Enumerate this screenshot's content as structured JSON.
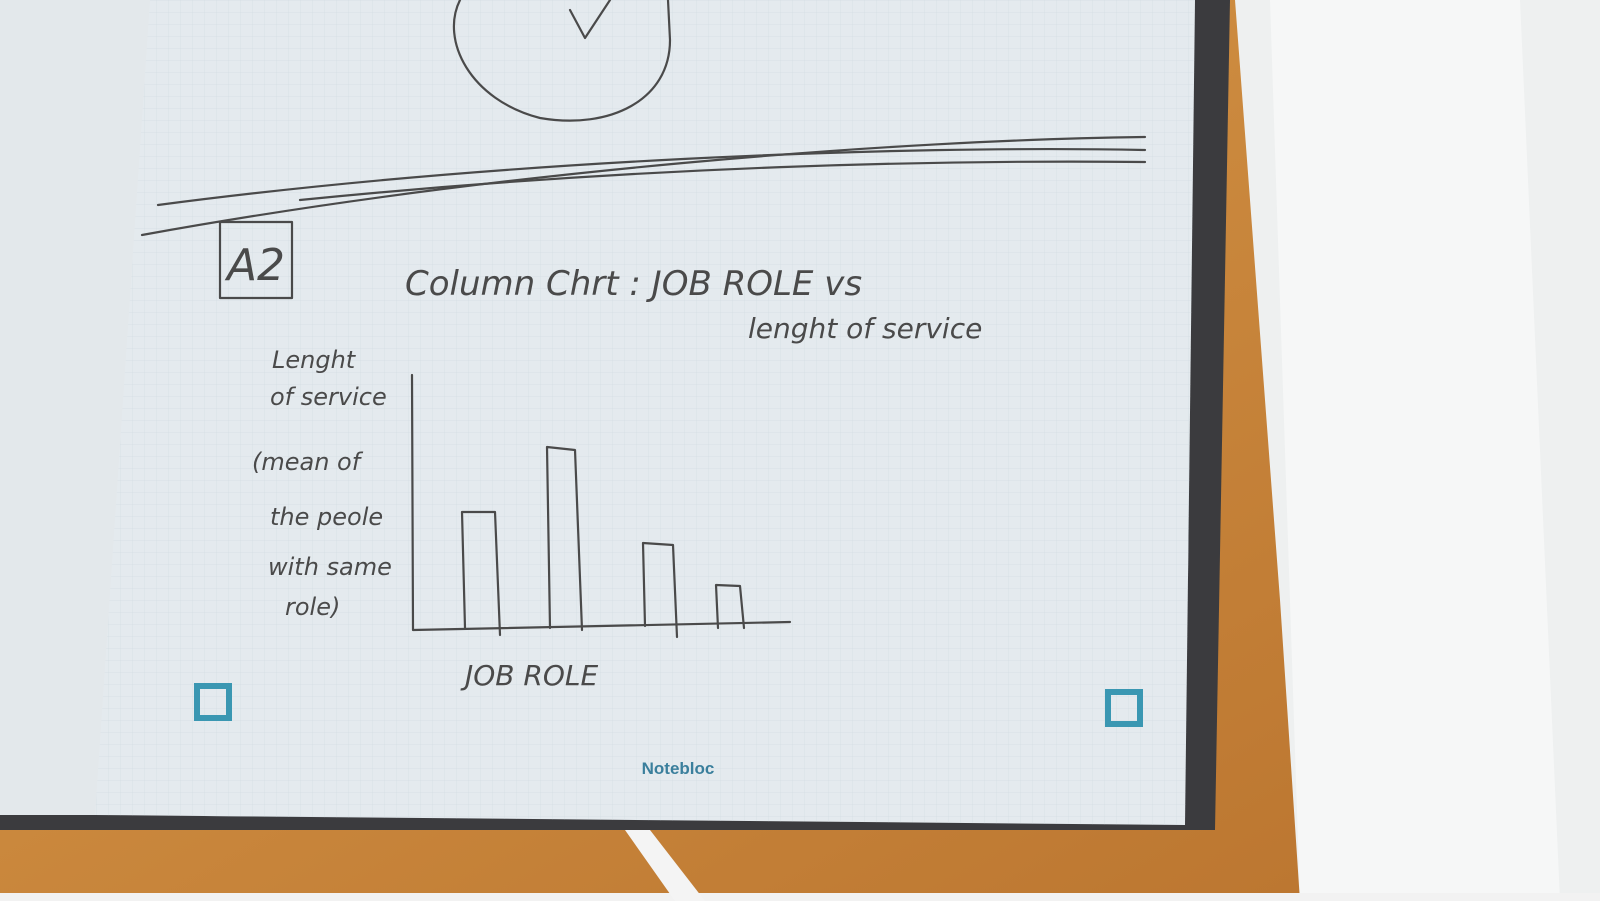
{
  "stamp": "A2",
  "title": {
    "line1": "Column Chrt : JOB ROLE vs",
    "line2": "lenght of service"
  },
  "y_label": [
    "Lenght",
    "of service",
    "(mean of",
    "the peole",
    "with same",
    "role)"
  ],
  "x_label": "JOB ROLE",
  "brand": "Notebloc"
}
